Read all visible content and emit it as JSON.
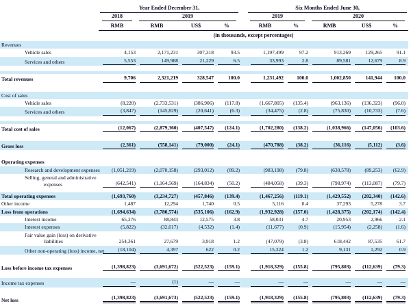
{
  "colors": {
    "row_stripe": "#cfeaf7",
    "text": "#0a0a1e"
  },
  "table": {
    "header": {
      "group1": "Year Ended December 31,",
      "group2": "Six Months Ended June 30,",
      "years": [
        {
          "label": "2018",
          "span": 1
        },
        {
          "label": "2019",
          "span": 3
        },
        {
          "label": "2019",
          "span": 2
        },
        {
          "label": "2020",
          "span": 3
        }
      ],
      "units": [
        "RMB",
        "RMB",
        "US$",
        "%",
        "RMB",
        "%",
        "RMB",
        "US$",
        "%"
      ],
      "note": "(in thousands, except percentages)"
    },
    "rows": [
      {
        "t": "sec",
        "label": "Revenues",
        "shaded": true
      },
      {
        "t": "row",
        "label": "Vehicle sales",
        "indent": 1,
        "v": [
          "4,153",
          "2,171,231",
          "307,318",
          "93.5",
          "1,197,499",
          "97.2",
          "913,269",
          "129,265",
          "91.1"
        ]
      },
      {
        "t": "row",
        "label": "Services and others",
        "indent": 1,
        "shaded": true,
        "u": "s",
        "v": [
          "5,553",
          "149,988",
          "21,229",
          "6.5",
          "33,993",
          "2.8",
          "89,581",
          "12,679",
          "8.9"
        ]
      },
      {
        "t": "sp",
        "h": 12,
        "band": true
      },
      {
        "t": "row",
        "label": "Total revenues",
        "bold": true,
        "u": "s",
        "v": [
          "9,706",
          "2,321,219",
          "328,547",
          "100.0",
          "1,231,492",
          "100.0",
          "1,002,850",
          "141,944",
          "100.0"
        ]
      },
      {
        "t": "sp",
        "h": 12
      },
      {
        "t": "sec",
        "label": "Cost of sales",
        "shaded": true
      },
      {
        "t": "row",
        "label": "Vehicle sales",
        "indent": 1,
        "v": [
          "(8,220)",
          "(2,733,531)",
          "(386,906)",
          "(117.8)",
          "(1,667,805)",
          "(135.4)",
          "(963,136)",
          "(136,323)",
          "(96.0)"
        ]
      },
      {
        "t": "row",
        "label": "Services and others",
        "indent": 1,
        "shaded": true,
        "u": "s",
        "v": [
          "(3,847)",
          "(145,829)",
          "(20,641)",
          "(6.3)",
          "(34,475)",
          "(2.8)",
          "(75,830)",
          "(10,733)",
          "(7.6)"
        ]
      },
      {
        "t": "sp",
        "h": 11,
        "band": true
      },
      {
        "t": "row",
        "label": "Total cost of sales",
        "bold": true,
        "u": "s",
        "v": [
          "(12,067)",
          "(2,879,360)",
          "(407,547)",
          "(124.1)",
          "(1,702,280)",
          "(138.2)",
          "(1,038,966)",
          "(147,056)",
          "(103.6)"
        ]
      },
      {
        "t": "sp",
        "h": 12
      },
      {
        "t": "row",
        "label": "Gross loss",
        "bold": true,
        "shaded": true,
        "u": "s",
        "v": [
          "(2,361)",
          "(558,141)",
          "(79,000)",
          "(24.1)",
          "(470,788)",
          "(38.2)",
          "(36,116)",
          "(5,112)",
          "(3.6)"
        ]
      },
      {
        "t": "sp",
        "h": 12
      },
      {
        "t": "sec",
        "label": "Operating expenses",
        "bold": true
      },
      {
        "t": "row",
        "label": "Research and development expenses",
        "indent": 1,
        "shaded": true,
        "v": [
          "(1,051,219)",
          "(2,070,158)",
          "(293,012)",
          "(89.2)",
          "(983,198)",
          "(79.8)",
          "(630,578)",
          "(89,253)",
          "(62.9)"
        ]
      },
      {
        "t": "row",
        "label": "Selling, general and administrative",
        "label2": "expenses",
        "indent": 1,
        "u": "s",
        "v": [
          "(642,541)",
          "(1,164,569)",
          "(164,834)",
          "(50.2)",
          "(484,058)",
          "(39.3)",
          "(798,974)",
          "(113,087)",
          "(79.7)"
        ]
      },
      {
        "t": "sp",
        "h": 6
      },
      {
        "t": "row",
        "label": "Total operating expenses",
        "bold": true,
        "shaded": true,
        "v": [
          "(1,693,760)",
          "(3,234,727)",
          "(457,846)",
          "(139.4)",
          "(1,467,256)",
          "(119.1)",
          "(1,429,552)",
          "(202,340)",
          "(142.6)"
        ]
      },
      {
        "t": "row",
        "label": "Other income",
        "v": [
          "1,487",
          "12,294",
          "1,740",
          "0.5",
          "5,116",
          "0.4",
          "37,293",
          "5,278",
          "3.7"
        ]
      },
      {
        "t": "row",
        "label": "Loss from operations",
        "bold": true,
        "shaded": true,
        "v": [
          "(1,694,634)",
          "(3,780,574)",
          "(535,106)",
          "(162.9)",
          "(1,932,928)",
          "(157.0)",
          "(1,428,375)",
          "(202,174)",
          "(142.4)"
        ]
      },
      {
        "t": "row",
        "label": "Interest income",
        "indent": 1,
        "v": [
          "65,376",
          "88,843",
          "12,575",
          "3.8",
          "58,031",
          "4.7",
          "20,953",
          "2,966",
          "2.1"
        ]
      },
      {
        "t": "row",
        "label": "Interest expenses",
        "indent": 1,
        "shaded": true,
        "v": [
          "(5,822)",
          "(32,017)",
          "(4,532)",
          "(1.4)",
          "(11,677)",
          "(0.9)",
          "(15,954)",
          "(2,258)",
          "(1.6)"
        ]
      },
      {
        "t": "row",
        "label": "Fair value gain (loss) on derivative",
        "label2": "liabilities",
        "indent": 1,
        "v": [
          "254,361",
          "27,679",
          "3,918",
          "1.2",
          "(47,079)",
          "(3.8)",
          "618,442",
          "87,535",
          "61.7"
        ]
      },
      {
        "t": "row",
        "label": "Other non-operating (loss) income, net",
        "indent": 1,
        "shaded": true,
        "u": "s",
        "v": [
          "(18,104)",
          "4,397",
          "622",
          "0.2",
          "15,324",
          "1.2",
          "9,131",
          "1,292",
          "0.9"
        ]
      },
      {
        "t": "sp",
        "h": 12
      },
      {
        "t": "row",
        "label": "Loss before income tax expenses",
        "bold": true,
        "u": "s",
        "v": [
          "(1,398,823)",
          "(3,691,672)",
          "(522,523)",
          "(159.1)",
          "(1,918,329)",
          "(155.8)",
          "(795,803)",
          "(112,639)",
          "(79.3)"
        ]
      },
      {
        "t": "sp",
        "h": 9
      },
      {
        "t": "row",
        "label": "Income tax expenses",
        "shaded": true,
        "u": "s",
        "v": [
          "—",
          "(1)",
          "—",
          "—",
          "—",
          "—",
          "—",
          "—",
          "—"
        ]
      },
      {
        "t": "sp",
        "h": 9
      },
      {
        "t": "row",
        "label": "Net loss",
        "bold": true,
        "u": "d",
        "v": [
          "(1,398,823)",
          "(3,691,673)",
          "(522,523)",
          "(159.1)",
          "(1,918,329)",
          "(155.8)",
          "(795,803)",
          "(112,639)",
          "(79.3)"
        ]
      }
    ]
  }
}
